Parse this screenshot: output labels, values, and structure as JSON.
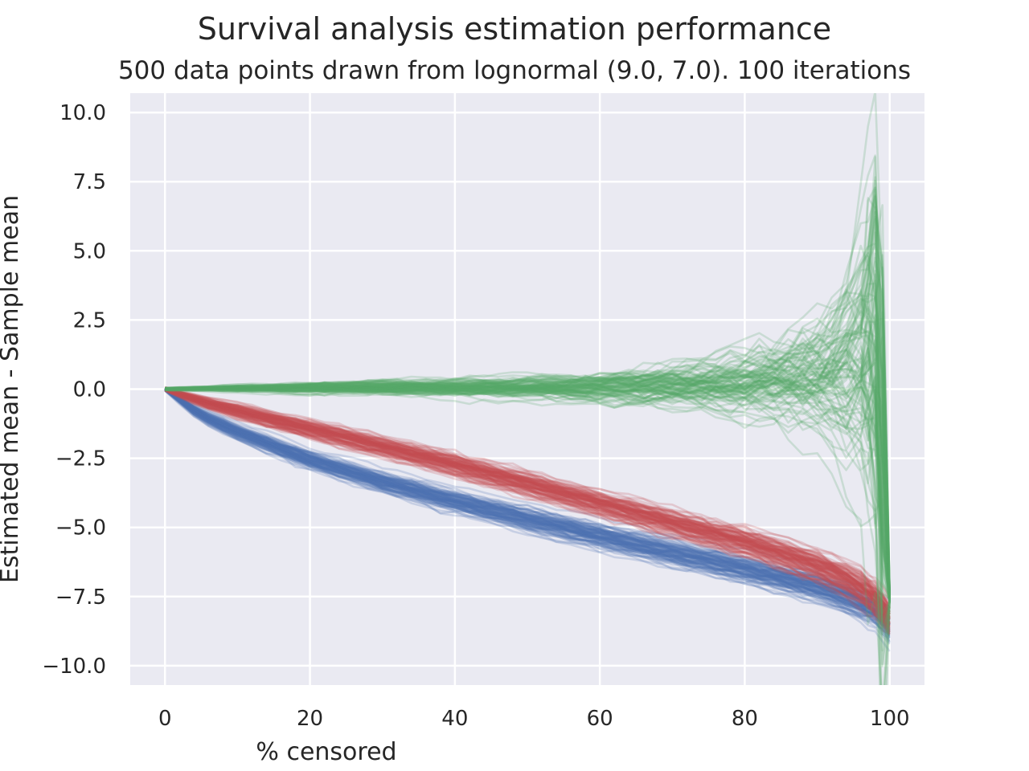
{
  "chart_data": {
    "type": "line",
    "title": "Survival analysis estimation performance",
    "subtitle": "500 data points drawn from lognormal (9.0, 7.0). 100 iterations",
    "xlabel": "% censored",
    "ylabel": "Estimated mean - Sample mean",
    "xlim": [
      -4.8,
      104.8
    ],
    "ylim": [
      -10.7,
      10.7
    ],
    "x_ticks": [
      0,
      20,
      40,
      60,
      80,
      100
    ],
    "x_tick_labels": [
      "0",
      "20",
      "40",
      "60",
      "80",
      "100"
    ],
    "y_ticks": [
      10.0,
      7.5,
      5.0,
      2.5,
      0.0,
      -2.5,
      -5.0,
      -7.5,
      -10.0
    ],
    "y_tick_labels": [
      "10.0",
      "7.5",
      "5.0",
      "2.5",
      "0.0",
      "−2.5",
      "−5.0",
      "−7.5",
      "−10.0"
    ],
    "grid": true,
    "background": "#eaeaf2",
    "iterations": 100,
    "series": [
      {
        "color": "#4c72b0",
        "alpha": 0.22,
        "x": [
          0,
          5,
          10,
          20,
          30,
          40,
          50,
          60,
          70,
          80,
          90,
          95,
          98,
          100
        ],
        "values": [
          0.0,
          -0.95,
          -1.55,
          -2.55,
          -3.35,
          -4.05,
          -4.7,
          -5.3,
          -5.9,
          -6.5,
          -7.15,
          -7.6,
          -8.0,
          -8.5
        ],
        "spread": [
          0.03,
          0.12,
          0.15,
          0.18,
          0.2,
          0.22,
          0.24,
          0.25,
          0.26,
          0.27,
          0.28,
          0.3,
          0.32,
          0.35
        ]
      },
      {
        "color": "#c44e52",
        "alpha": 0.22,
        "x": [
          0,
          5,
          10,
          20,
          30,
          40,
          50,
          60,
          70,
          80,
          90,
          95,
          98,
          100
        ],
        "values": [
          0.0,
          -0.45,
          -0.8,
          -1.45,
          -2.1,
          -2.75,
          -3.45,
          -4.15,
          -4.85,
          -5.55,
          -6.4,
          -7.0,
          -7.6,
          -8.3
        ],
        "spread": [
          0.03,
          0.1,
          0.14,
          0.18,
          0.2,
          0.22,
          0.24,
          0.25,
          0.26,
          0.28,
          0.3,
          0.33,
          0.35,
          0.35
        ]
      },
      {
        "color": "#55a868",
        "alpha": 0.22,
        "x": [
          0,
          5,
          10,
          20,
          30,
          40,
          50,
          60,
          70,
          80,
          85,
          90,
          93,
          96,
          98,
          100
        ],
        "values": [
          0.0,
          0.02,
          0.03,
          0.05,
          0.05,
          0.05,
          0.04,
          0.05,
          0.1,
          0.2,
          0.3,
          0.4,
          0.5,
          0.8,
          1.2,
          -7.6
        ],
        "spread": [
          0.03,
          0.05,
          0.08,
          0.13,
          0.18,
          0.22,
          0.28,
          0.35,
          0.5,
          0.75,
          1.0,
          1.4,
          1.9,
          3.0,
          5.0,
          0.15
        ]
      }
    ]
  }
}
